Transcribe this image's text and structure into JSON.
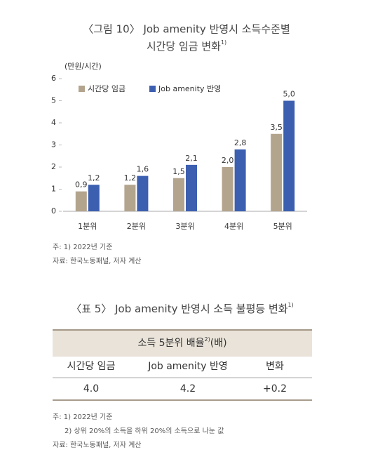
{
  "chart_data": {
    "type": "bar",
    "title": [
      "〈그림 10〉 Job amenity 반영시 소득수준별",
      "시간당 임금 변화"
    ],
    "title_sup": "1)",
    "y_unit": "(만원/시간)",
    "categories": [
      "1분위",
      "2분위",
      "3분위",
      "4분위",
      "5분위"
    ],
    "series": [
      {
        "name": "시간당 임금",
        "color": "#b3a48d",
        "values": [
          0.9,
          1.2,
          1.5,
          2.0,
          3.5
        ],
        "value_labels": [
          "0,9",
          "1,2",
          "1,5",
          "2,0",
          "3,5"
        ]
      },
      {
        "name": "Job amenity 반영",
        "color": "#3c5fb0",
        "values": [
          1.2,
          1.6,
          2.1,
          2.8,
          5.0
        ],
        "value_labels": [
          "1,2",
          "1,6",
          "2,1",
          "2,8",
          "5,0"
        ]
      }
    ],
    "ylim": [
      0,
      6
    ],
    "yticks": [
      0,
      1,
      2,
      3,
      4,
      5,
      6
    ],
    "grid": false,
    "legend": "top-left"
  },
  "chart_notes": [
    "주: 1) 2022년 기준",
    "자료: 한국노동패널, 저자 계산"
  ],
  "table": {
    "title": "〈표 5〉 Job amenity 반영시 소득 불평등 변화",
    "title_sup": "1)",
    "group_header": "소득 5분위 배율",
    "group_header_sup": "2)",
    "group_header_unit": "(배)",
    "columns": [
      "시간당 임금",
      "Job amenity 반영",
      "변화"
    ],
    "rows": [
      [
        "4.0",
        "4.2",
        "+0.2"
      ]
    ]
  },
  "table_notes": [
    "주: 1) 2022년 기준",
    "2) 상위 20%의 소득을 하위 20%의 소득으로 나눈 값",
    "자료: 한국노동패널, 저자 계산"
  ]
}
